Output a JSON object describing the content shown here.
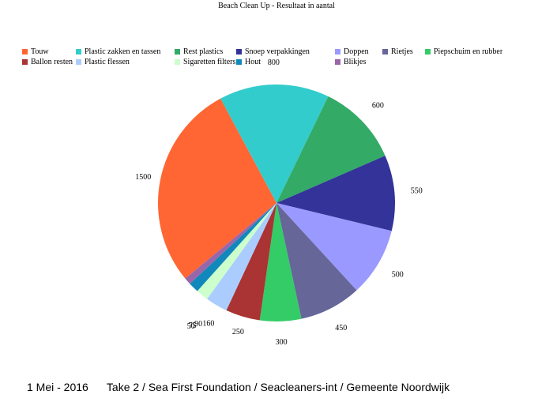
{
  "chart_data": {
    "type": "pie",
    "title": "Beach Clean Up - Resultaat in aantal",
    "legend_position": "top",
    "slices": [
      {
        "label": "Touw",
        "value": 1500,
        "color": "#ff6633"
      },
      {
        "label": "Plastic zakken en tassen",
        "value": 800,
        "color": "#33cccc"
      },
      {
        "label": "Rest plastics",
        "value": 600,
        "color": "#33aa66"
      },
      {
        "label": "Snoep verpakkingen",
        "value": 550,
        "color": "#333399"
      },
      {
        "label": "Doppen",
        "value": 500,
        "color": "#9999ff"
      },
      {
        "label": "Rietjes",
        "value": 450,
        "color": "#666699"
      },
      {
        "label": "Piepschuim en rubber",
        "value": 300,
        "color": "#33cc66"
      },
      {
        "label": "Ballon resten",
        "value": 250,
        "color": "#aa3333"
      },
      {
        "label": "Plastic flessen",
        "value": 160,
        "color": "#aaccff"
      },
      {
        "label": "Sigaretten filters",
        "value": 90,
        "color": "#ccffcc"
      },
      {
        "label": "Hout",
        "value": 75,
        "color": "#1188bb"
      },
      {
        "label": "Blikjes",
        "value": 50,
        "color": "#9966aa"
      }
    ]
  },
  "footer": {
    "text": "1 Mei - 2016      Take 2 / Sea First Foundation / Seacleaners-int / Gemeente Noordwijk"
  }
}
